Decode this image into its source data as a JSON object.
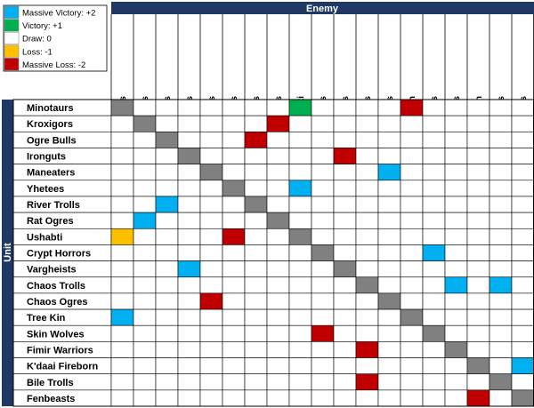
{
  "axes": {
    "column_header": "Enemy",
    "row_header": "Unit"
  },
  "legend": [
    {
      "label": "Massive Victory: +2",
      "color": "#00b0f0"
    },
    {
      "label": "Victory: +1",
      "color": "#00b050"
    },
    {
      "label": "Draw: 0",
      "color": "#ffffff"
    },
    {
      "label": "Loss: -1",
      "color": "#ffc000"
    },
    {
      "label": "Massive Loss: -2",
      "color": "#c00000"
    }
  ],
  "colors": {
    "diagonal": "#808080",
    "band": "#1f3864",
    "blank": "#ffffff"
  },
  "units": [
    "Minotaurs",
    "Kroxigors",
    "Ogre Bulls",
    "Ironguts",
    "Maneaters",
    "Yhetees",
    "River Trolls",
    "Rat Ogres",
    "Ushabti",
    "Crypt Horrors",
    "Vargheists",
    "Chaos Trolls",
    "Chaos Ogres",
    "Tree Kin",
    "Skin Wolves",
    "Fimir Warriors",
    "K'daai Fireborn",
    "Bile Trolls",
    "Fenbeasts"
  ],
  "results": [
    {
      "unit": 0,
      "enemy": 8,
      "score": 1
    },
    {
      "unit": 0,
      "enemy": 13,
      "score": -2
    },
    {
      "unit": 1,
      "enemy": 7,
      "score": -2
    },
    {
      "unit": 2,
      "enemy": 6,
      "score": -2
    },
    {
      "unit": 3,
      "enemy": 10,
      "score": -2
    },
    {
      "unit": 4,
      "enemy": 12,
      "score": 2
    },
    {
      "unit": 5,
      "enemy": 8,
      "score": 2
    },
    {
      "unit": 6,
      "enemy": 2,
      "score": 2
    },
    {
      "unit": 7,
      "enemy": 1,
      "score": 2
    },
    {
      "unit": 8,
      "enemy": 0,
      "score": -1
    },
    {
      "unit": 8,
      "enemy": 5,
      "score": -2
    },
    {
      "unit": 9,
      "enemy": 14,
      "score": 2
    },
    {
      "unit": 10,
      "enemy": 3,
      "score": 2
    },
    {
      "unit": 11,
      "enemy": 15,
      "score": 2
    },
    {
      "unit": 11,
      "enemy": 17,
      "score": 2
    },
    {
      "unit": 12,
      "enemy": 4,
      "score": -2
    },
    {
      "unit": 13,
      "enemy": 0,
      "score": 2
    },
    {
      "unit": 14,
      "enemy": 9,
      "score": -2
    },
    {
      "unit": 15,
      "enemy": 11,
      "score": -2
    },
    {
      "unit": 16,
      "enemy": 18,
      "score": 2
    },
    {
      "unit": 17,
      "enemy": 11,
      "score": -2
    },
    {
      "unit": 18,
      "enemy": 16,
      "score": -2
    }
  ]
}
